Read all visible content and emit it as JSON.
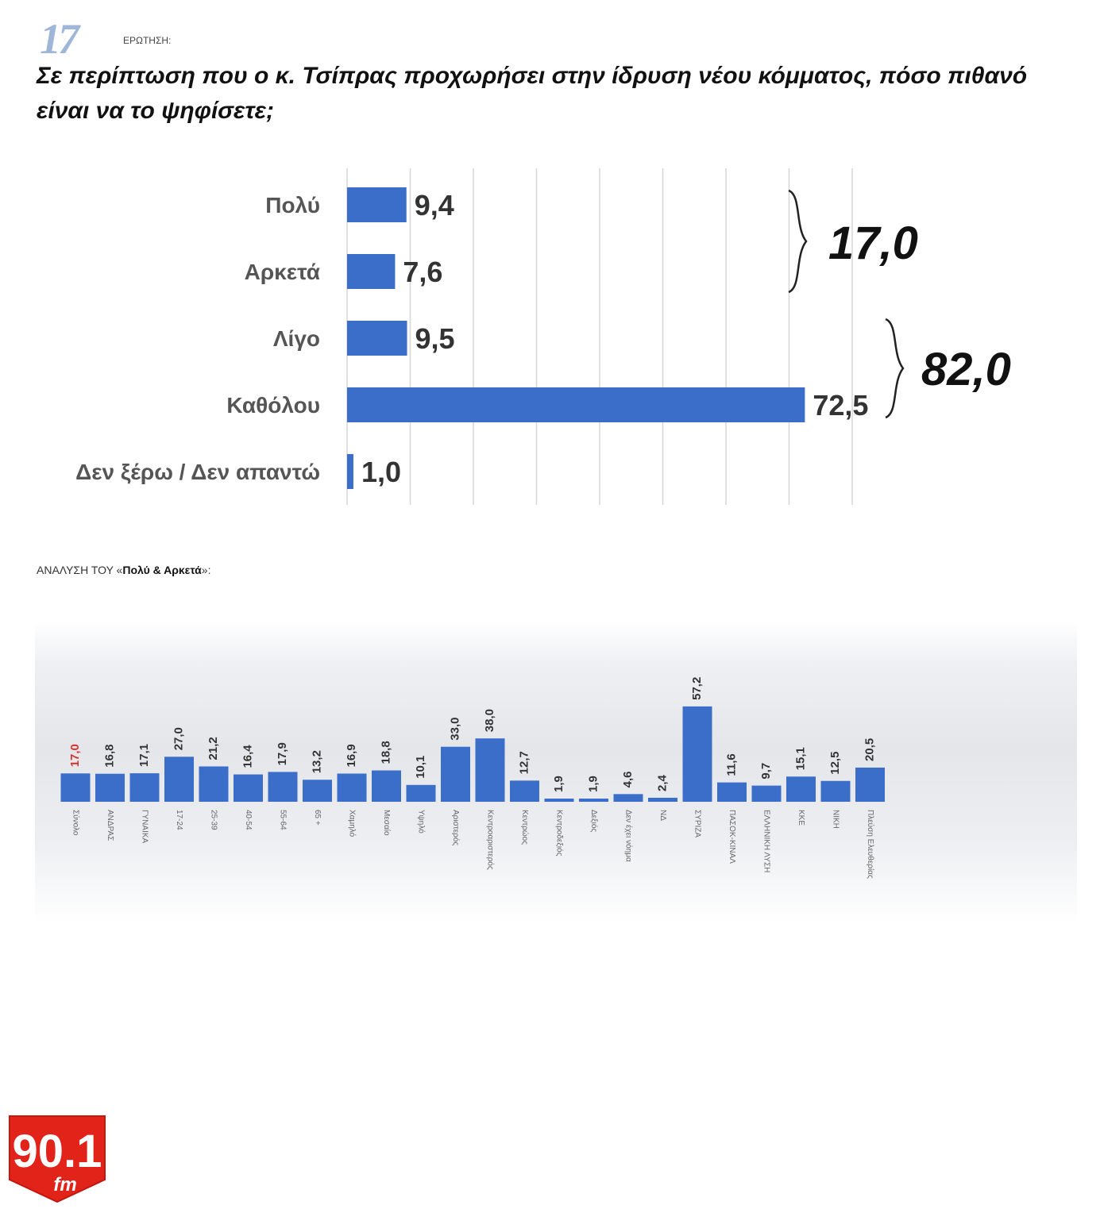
{
  "header": {
    "question_number": "17",
    "question_label": "ΕΡΩΤΗΣΗ:",
    "question_text": "Σε περίπτωση που ο κ. Τσίπρας προχωρήσει στην ίδρυση νέου κόμματος, πόσο πιθανό είναι να το ψηφίσετε;"
  },
  "chart_data": [
    {
      "type": "bar",
      "orientation": "horizontal",
      "categories": [
        "Πολύ",
        "Αρκετά",
        "Λίγο",
        "Καθόλου",
        "Δεν ξέρω / Δεν απαντώ"
      ],
      "values": [
        9.4,
        7.6,
        9.5,
        72.5,
        1.0
      ],
      "value_labels": [
        "9,4",
        "7,6",
        "9,5",
        "72,5",
        "1,0"
      ],
      "xlim": [
        0,
        80
      ],
      "grid": true,
      "color": "#3b6ec9",
      "group_totals": [
        {
          "categories": [
            "Πολύ",
            "Αρκετά"
          ],
          "label": "17,0"
        },
        {
          "categories": [
            "Λίγο",
            "Καθόλου"
          ],
          "label": "82,0"
        }
      ]
    },
    {
      "type": "bar",
      "title_prefix": "ΑΝΑΛΥΣΗ ΤΟΥ «",
      "title_bold": "Πολύ & Αρκετά",
      "title_suffix": "»:",
      "color": "#3b6ec9",
      "highlight_color": "#d9302c",
      "groups": [
        {
          "bars": [
            {
              "label": "Σύνολο",
              "value": 17.0,
              "text": "17,0",
              "highlight": true
            }
          ]
        },
        {
          "bars": [
            {
              "label": "ΑΝΔΡΑΣ",
              "value": 16.8,
              "text": "16,8"
            },
            {
              "label": "ΓΥΝΑΙΚΑ",
              "value": 17.1,
              "text": "17,1"
            }
          ]
        },
        {
          "bars": [
            {
              "label": "17-24",
              "value": 27.0,
              "text": "27,0"
            },
            {
              "label": "25-39",
              "value": 21.2,
              "text": "21,2"
            },
            {
              "label": "40-54",
              "value": 16.4,
              "text": "16,4"
            },
            {
              "label": "55-64",
              "value": 17.9,
              "text": "17,9"
            },
            {
              "label": "65 +",
              "value": 13.2,
              "text": "13,2"
            }
          ]
        },
        {
          "bars": [
            {
              "label": "Χαμηλό",
              "value": 16.9,
              "text": "16,9"
            },
            {
              "label": "Μεσαίο",
              "value": 18.8,
              "text": "18,8"
            },
            {
              "label": "Υψηλό",
              "value": 10.1,
              "text": "10,1"
            }
          ]
        },
        {
          "bars": [
            {
              "label": "Αριστερός",
              "value": 33.0,
              "text": "33,0"
            },
            {
              "label": "Κεντροαριστερός",
              "value": 38.0,
              "text": "38,0"
            },
            {
              "label": "Κεντρώος",
              "value": 12.7,
              "text": "12,7"
            },
            {
              "label": "Κεντροδεξιός",
              "value": 1.9,
              "text": "1,9"
            },
            {
              "label": "Δεξιός",
              "value": 1.9,
              "text": "1,9"
            },
            {
              "label": "Δεν έχει νόημα",
              "value": 4.6,
              "text": "4,6"
            }
          ]
        },
        {
          "bars": [
            {
              "label": "ΝΔ",
              "value": 2.4,
              "text": "2,4"
            },
            {
              "label": "ΣΥΡΙΖΑ",
              "value": 57.2,
              "text": "57,2"
            },
            {
              "label": "ΠΑΣΟΚ-ΚΙΝΑΛ",
              "value": 11.6,
              "text": "11,6"
            },
            {
              "label": "ΕΛΛΗΝΙΚΗ ΛΥΣΗ",
              "value": 9.7,
              "text": "9,7"
            },
            {
              "label": "ΚΚΕ",
              "value": 15.1,
              "text": "15,1"
            },
            {
              "label": "ΝΙΚΗ",
              "value": 12.5,
              "text": "12,5"
            },
            {
              "label": "Πλεύση Ελευθερίας",
              "value": 20.5,
              "text": "20,5"
            }
          ]
        }
      ]
    }
  ],
  "logo": {
    "main_text": "90.1",
    "sub_text": "fm",
    "color": "#e2231a"
  }
}
